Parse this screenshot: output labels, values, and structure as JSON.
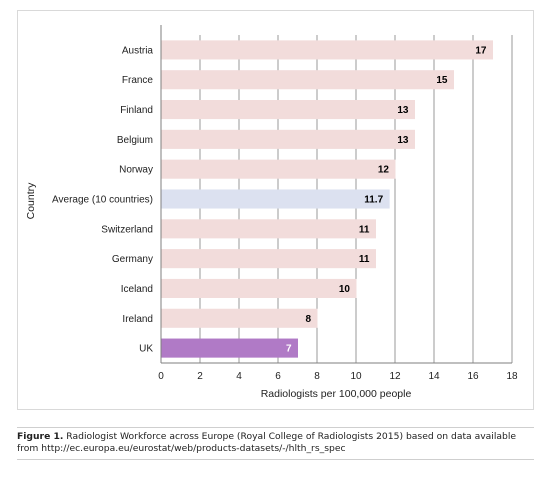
{
  "chart_data": {
    "type": "bar",
    "orientation": "horizontal",
    "categories": [
      "Austria",
      "France",
      "Finland",
      "Belgium",
      "Norway",
      "Average (10 countries)",
      "Switzerland",
      "Germany",
      "Iceland",
      "Ireland",
      "UK"
    ],
    "values": [
      17,
      15,
      13,
      13,
      12,
      11.7,
      11,
      11,
      10,
      8,
      7
    ],
    "value_labels": [
      "17",
      "15",
      "13",
      "13",
      "12",
      "11.7",
      "11",
      "11",
      "10",
      "8",
      "7"
    ],
    "xlabel": "Radiologists per 100,000 people",
    "ylabel": "Country",
    "xlim": [
      0,
      18
    ],
    "xticks": [
      "0",
      "2",
      "4",
      "6",
      "8",
      "10",
      "12",
      "14",
      "16",
      "18"
    ],
    "grid": "vertical",
    "legend": "none",
    "colors": {
      "default": "#f2dcdb",
      "average": "#dce1f0",
      "highlight": "#b07ac6",
      "grid": "#7f7f7f",
      "label_default": "#000000",
      "label_highlight": "#ffffff"
    },
    "bar_colors": [
      "default",
      "default",
      "default",
      "default",
      "default",
      "average",
      "default",
      "default",
      "default",
      "default",
      "highlight"
    ]
  },
  "caption": {
    "label": "Figure 1.",
    "text": " Radiologist Workforce across Europe (Royal College of Radiologists 2015) based on data available from http://ec.europa.eu/eurostat/web/products-datasets/-/hlth_rs_spec"
  }
}
